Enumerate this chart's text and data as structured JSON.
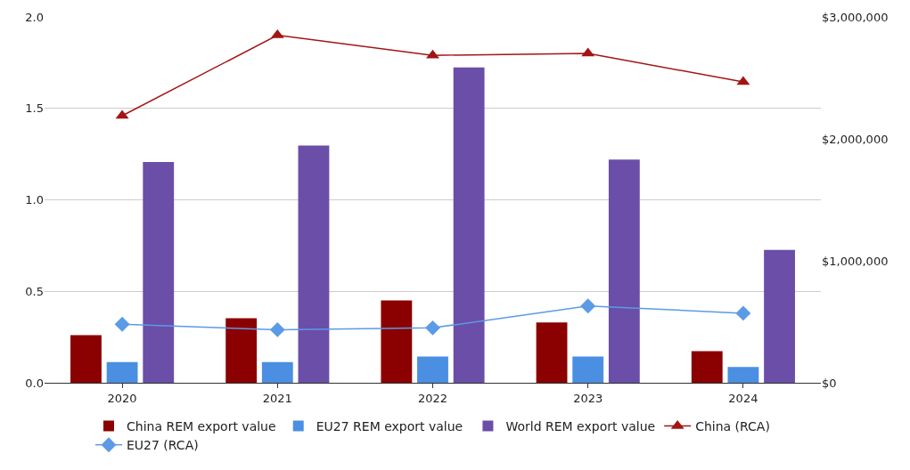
{
  "chart_data": {
    "type": "bar",
    "categories": [
      "2020",
      "2021",
      "2022",
      "2023",
      "2024"
    ],
    "series": [
      {
        "name": "China REM export value",
        "axis": "y2",
        "color": "#8b0000",
        "values": [
          390000,
          530000,
          675000,
          495000,
          260000
        ]
      },
      {
        "name": "EU27 REM export value",
        "axis": "y2",
        "color": "#4a8fe2",
        "values": [
          170000,
          170000,
          215000,
          215000,
          130000
        ]
      },
      {
        "name": "World REM export value",
        "axis": "y2",
        "color": "#6a4ea8",
        "values": [
          1810000,
          1945000,
          2585000,
          1830000,
          1090000
        ]
      },
      {
        "name": "China (RCA)",
        "type": "line",
        "axis": "y",
        "color": "#a31515",
        "marker": "triangle",
        "values": [
          1.46,
          1.9,
          1.79,
          1.8,
          1.645
        ]
      },
      {
        "name": "EU27 (RCA)",
        "type": "line",
        "axis": "y",
        "color": "#5b9be6",
        "marker": "diamond",
        "values": [
          0.32,
          0.29,
          0.3,
          0.42,
          0.38
        ]
      }
    ],
    "ylim": [
      0,
      2.0
    ],
    "yticks": [
      {
        "value": 0,
        "label": "0.0"
      },
      0.5,
      {
        "value": 1,
        "label": "1.0"
      },
      1.5,
      {
        "value": 2,
        "label": "2.0"
      }
    ],
    "y2lim": [
      0,
      3000000
    ],
    "y2ticks": [
      {
        "value": 0,
        "label": "$0"
      },
      {
        "value": 1000000,
        "label": "$1,000,000"
      },
      {
        "value": 2000000,
        "label": "$2,000,000"
      },
      {
        "value": 3000000,
        "label": "$3,000,000"
      }
    ],
    "grid": "y",
    "legend": "bottom"
  }
}
